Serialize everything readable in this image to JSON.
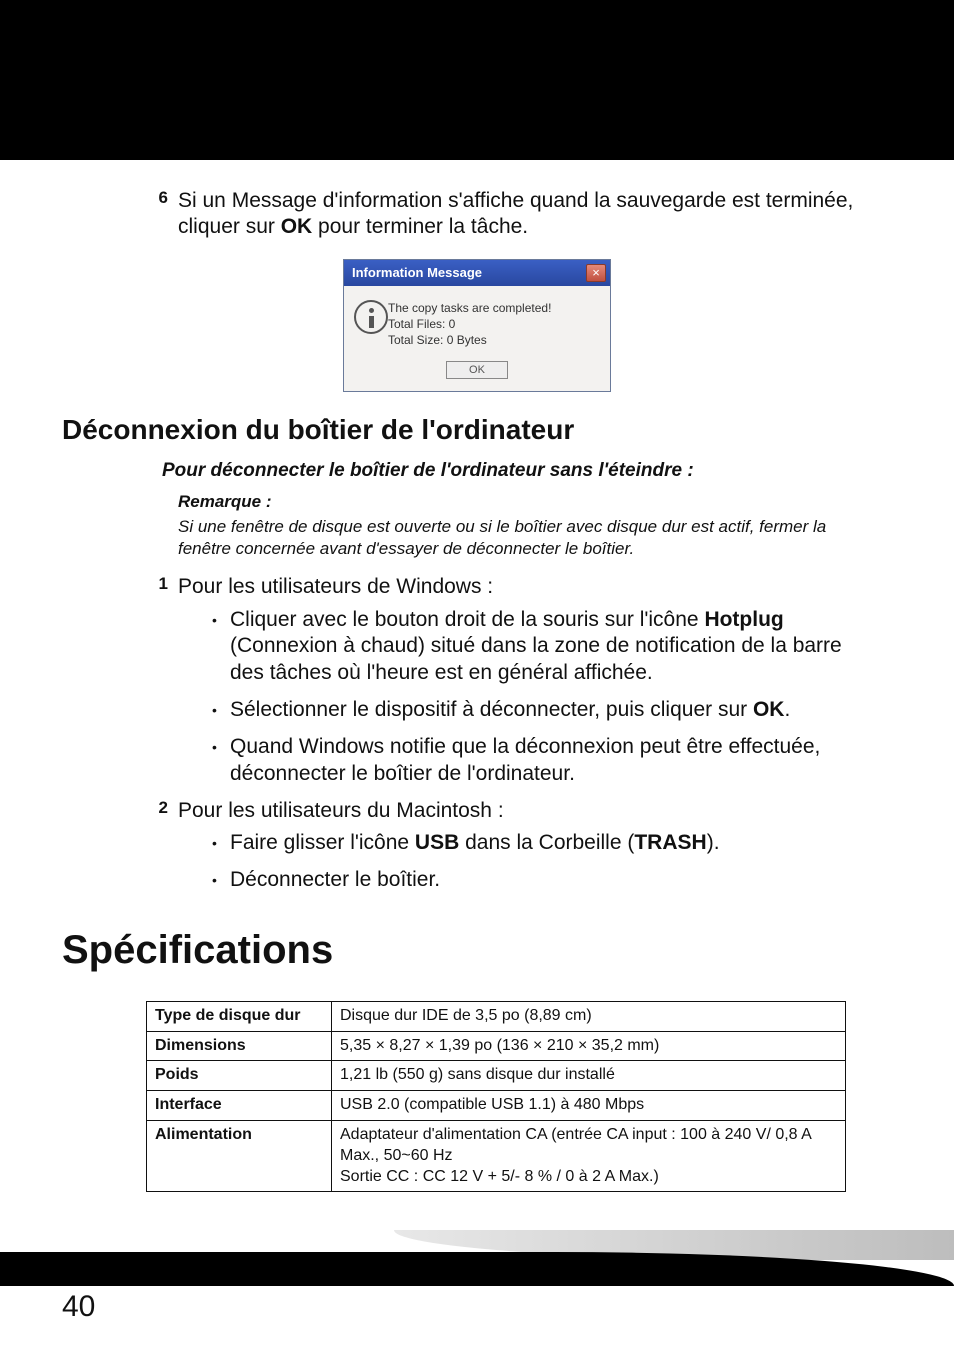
{
  "step6": {
    "num": "6",
    "text_before": "Si un Message d'information s'affiche quand la sauvegarde est terminée, cliquer sur ",
    "bold": "OK",
    "text_after": " pour terminer la tâche."
  },
  "dialog": {
    "title": "Information Message",
    "close": "×",
    "line1": "The copy tasks are completed!",
    "line2": "Total Files:  0",
    "line3": "Total Size: 0 Bytes",
    "ok": "OK"
  },
  "h2": "Déconnexion du boîtier de l'ordinateur",
  "subhead": "Pour déconnecter le boîtier de l'ordinateur sans l'éteindre :",
  "note_label": "Remarque :",
  "note_body": "Si une fenêtre de disque est ouverte ou si le boîtier avec disque dur est actif, fermer la fenêtre concernée avant d'essayer de déconnecter le boîtier.",
  "step1": {
    "num": "1",
    "text": "Pour les utilisateurs de Windows :"
  },
  "b1": {
    "pre": "Cliquer avec le bouton droit de la souris sur l'icône ",
    "bold": "Hotplug",
    "post": " (Connexion à chaud)  situé dans la zone de notification de la barre des tâches où l'heure est en général affichée."
  },
  "b2": {
    "pre": "Sélectionner le dispositif à déconnecter, puis cliquer sur ",
    "bold": "OK",
    "post": "."
  },
  "b3": "Quand Windows notifie que la déconnexion peut être effectuée, déconnecter le boîtier de l'ordinateur.",
  "step2": {
    "num": "2",
    "text": "Pour les utilisateurs du Macintosh :"
  },
  "b4": {
    "pre": "Faire glisser l'icône ",
    "bold1": "USB",
    "mid": " dans la Corbeille (",
    "bold2": "TRASH",
    "post": ")."
  },
  "b5": "Déconnecter le boîtier.",
  "h1": "Spécifications",
  "spec": {
    "rows": [
      {
        "label": "Type de disque dur",
        "value": "Disque dur IDE de 3,5 po (8,89 cm)"
      },
      {
        "label": "Dimensions",
        "value": "5,35 × 8,27 × 1,39 po (136 × 210 × 35,2 mm)"
      },
      {
        "label": "Poids",
        "value": "1,21 lb (550 g) sans disque dur installé"
      },
      {
        "label": "Interface",
        "value": "USB 2.0 (compatible USB 1.1) à 480 Mbps"
      },
      {
        "label": "Alimentation",
        "value": "Adaptateur d'alimentation CA (entrée CA input : 100 à 240 V/ 0,8 A Max., 50~60 Hz\nSortie CC : CC 12 V + 5/- 8 % / 0 à 2 A Max.)"
      }
    ]
  },
  "pagenum": "40"
}
